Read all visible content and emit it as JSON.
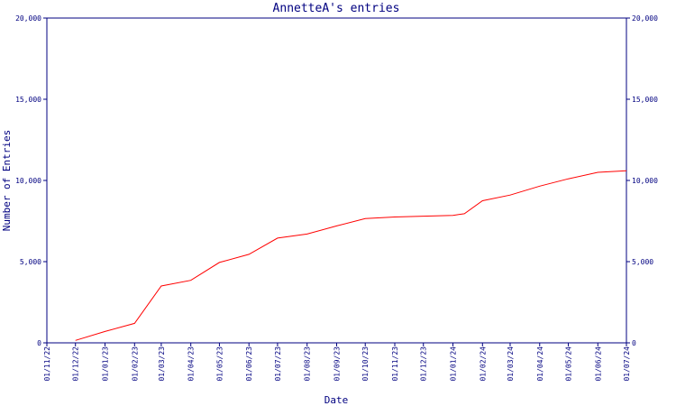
{
  "chart_data": {
    "type": "line",
    "title": "AnnetteA's entries",
    "xlabel": "Date",
    "ylabel": "Number of Entries",
    "ylim": [
      0,
      20000
    ],
    "y_ticks": [
      0,
      5000,
      10000,
      15000,
      20000
    ],
    "y_tick_labels": [
      "0",
      "5,000",
      "10,000",
      "15,000",
      "20,000"
    ],
    "x_ticks": [
      "2022-11-01",
      "2022-12-01",
      "2023-01-01",
      "2023-02-01",
      "2023-03-01",
      "2023-04-01",
      "2023-05-01",
      "2023-06-01",
      "2023-07-01",
      "2023-08-01",
      "2023-09-01",
      "2023-10-01",
      "2023-11-01",
      "2023-12-01",
      "2024-01-01",
      "2024-02-01",
      "2024-03-01",
      "2024-04-01",
      "2024-05-01",
      "2024-06-01",
      "2024-07-01"
    ],
    "x_tick_labels": [
      "01/11/22",
      "01/12/22",
      "01/01/23",
      "01/02/23",
      "01/03/23",
      "01/04/23",
      "01/05/23",
      "01/06/23",
      "01/07/23",
      "01/08/23",
      "01/09/23",
      "01/10/23",
      "01/11/23",
      "01/12/23",
      "01/01/24",
      "01/02/24",
      "01/03/24",
      "01/04/24",
      "01/05/24",
      "01/06/24",
      "01/07/24"
    ],
    "xlim": [
      "2022-11-01",
      "2024-07-01"
    ],
    "right_axis": true,
    "grid": false,
    "series": [
      {
        "color": "#ff0000",
        "points": [
          [
            "2022-12-01",
            150
          ],
          [
            "2023-01-01",
            700
          ],
          [
            "2023-02-01",
            1200
          ],
          [
            "2023-03-01",
            3500
          ],
          [
            "2023-04-01",
            3850
          ],
          [
            "2023-05-01",
            4950
          ],
          [
            "2023-06-01",
            5450
          ],
          [
            "2023-07-01",
            6450
          ],
          [
            "2023-08-01",
            6700
          ],
          [
            "2023-09-01",
            7200
          ],
          [
            "2023-10-01",
            7650
          ],
          [
            "2023-11-01",
            7750
          ],
          [
            "2023-12-01",
            7800
          ],
          [
            "2024-01-01",
            7850
          ],
          [
            "2024-01-13",
            7950
          ],
          [
            "2024-02-01",
            8750
          ],
          [
            "2024-03-01",
            9100
          ],
          [
            "2024-04-01",
            9650
          ],
          [
            "2024-05-01",
            10100
          ],
          [
            "2024-06-01",
            10500
          ],
          [
            "2024-07-01",
            10600
          ]
        ]
      }
    ]
  }
}
